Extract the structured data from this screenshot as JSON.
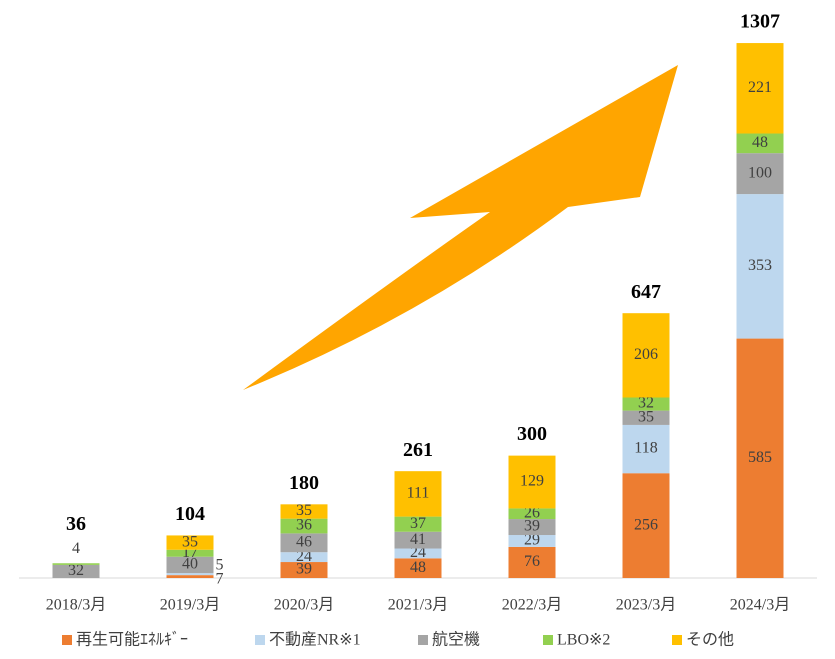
{
  "chart_data": {
    "type": "stacked-bar",
    "categories": [
      "2018/3月",
      "2019/3月",
      "2020/3月",
      "2021/3月",
      "2022/3月",
      "2023/3月",
      "2024/3月"
    ],
    "series": [
      {
        "name": "再生可能ｴﾈﾙｷﾞｰ",
        "color": "#ED7D31",
        "values": [
          null,
          7,
          39,
          48,
          76,
          256,
          585
        ]
      },
      {
        "name": "不動産NR※1",
        "color": "#BDD7EE",
        "values": [
          null,
          5,
          24,
          24,
          29,
          118,
          353
        ]
      },
      {
        "name": "航空機",
        "color": "#A5A5A5",
        "values": [
          32,
          40,
          46,
          41,
          39,
          35,
          100
        ]
      },
      {
        "name": "LBO※2",
        "color": "#92D050",
        "values": [
          4,
          17,
          36,
          37,
          26,
          32,
          48
        ]
      },
      {
        "name": "その他",
        "color": "#FFC000",
        "values": [
          null,
          35,
          35,
          111,
          129,
          206,
          221
        ]
      }
    ],
    "totals": [
      36,
      104,
      180,
      261,
      300,
      647,
      1307
    ],
    "ylim": [
      0,
      1400
    ],
    "legend": "bottom"
  }
}
